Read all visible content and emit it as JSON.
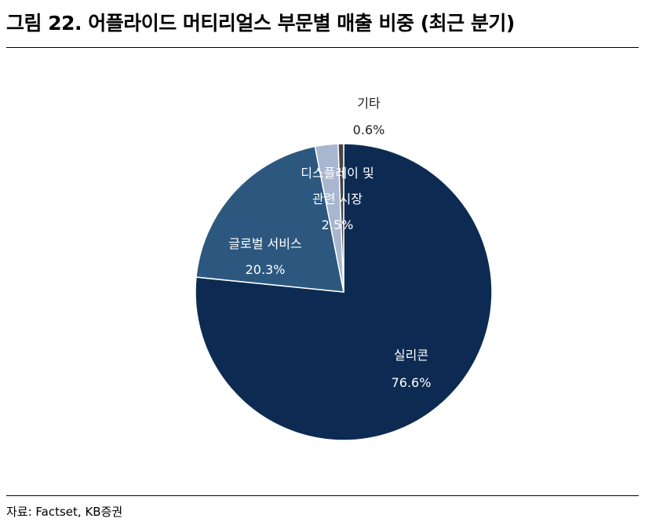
{
  "title": "그림 22. 어플라이드 머티리얼스 부문별 매출 비중 (최근 분기)",
  "source": "자료: Factset, KB증권",
  "chart_data": {
    "type": "pie",
    "title": "그림 22. 어플라이드 머티리얼스 부문별 매출 비중 (최근 분기)",
    "slices": [
      {
        "label": [
          "실리콘"
        ],
        "value": 76.6,
        "value_label": "76.6%",
        "color": "#0d2b52",
        "text_color": "#ffffff"
      },
      {
        "label": [
          "글로벌 서비스"
        ],
        "value": 20.3,
        "value_label": "20.3%",
        "color": "#2c5880",
        "text_color": "#ffffff"
      },
      {
        "label": [
          "디스플레이 및",
          "관련 시장"
        ],
        "value": 2.5,
        "value_label": "2.5%",
        "color": "#a8b6cf",
        "text_color": "#ffffff"
      },
      {
        "label": [
          "기타"
        ],
        "value": 0.6,
        "value_label": "0.6%",
        "color": "#444444",
        "text_color": "#222222"
      }
    ],
    "start_angle": "12 o'clock",
    "direction": "clockwise",
    "legend": "none"
  }
}
